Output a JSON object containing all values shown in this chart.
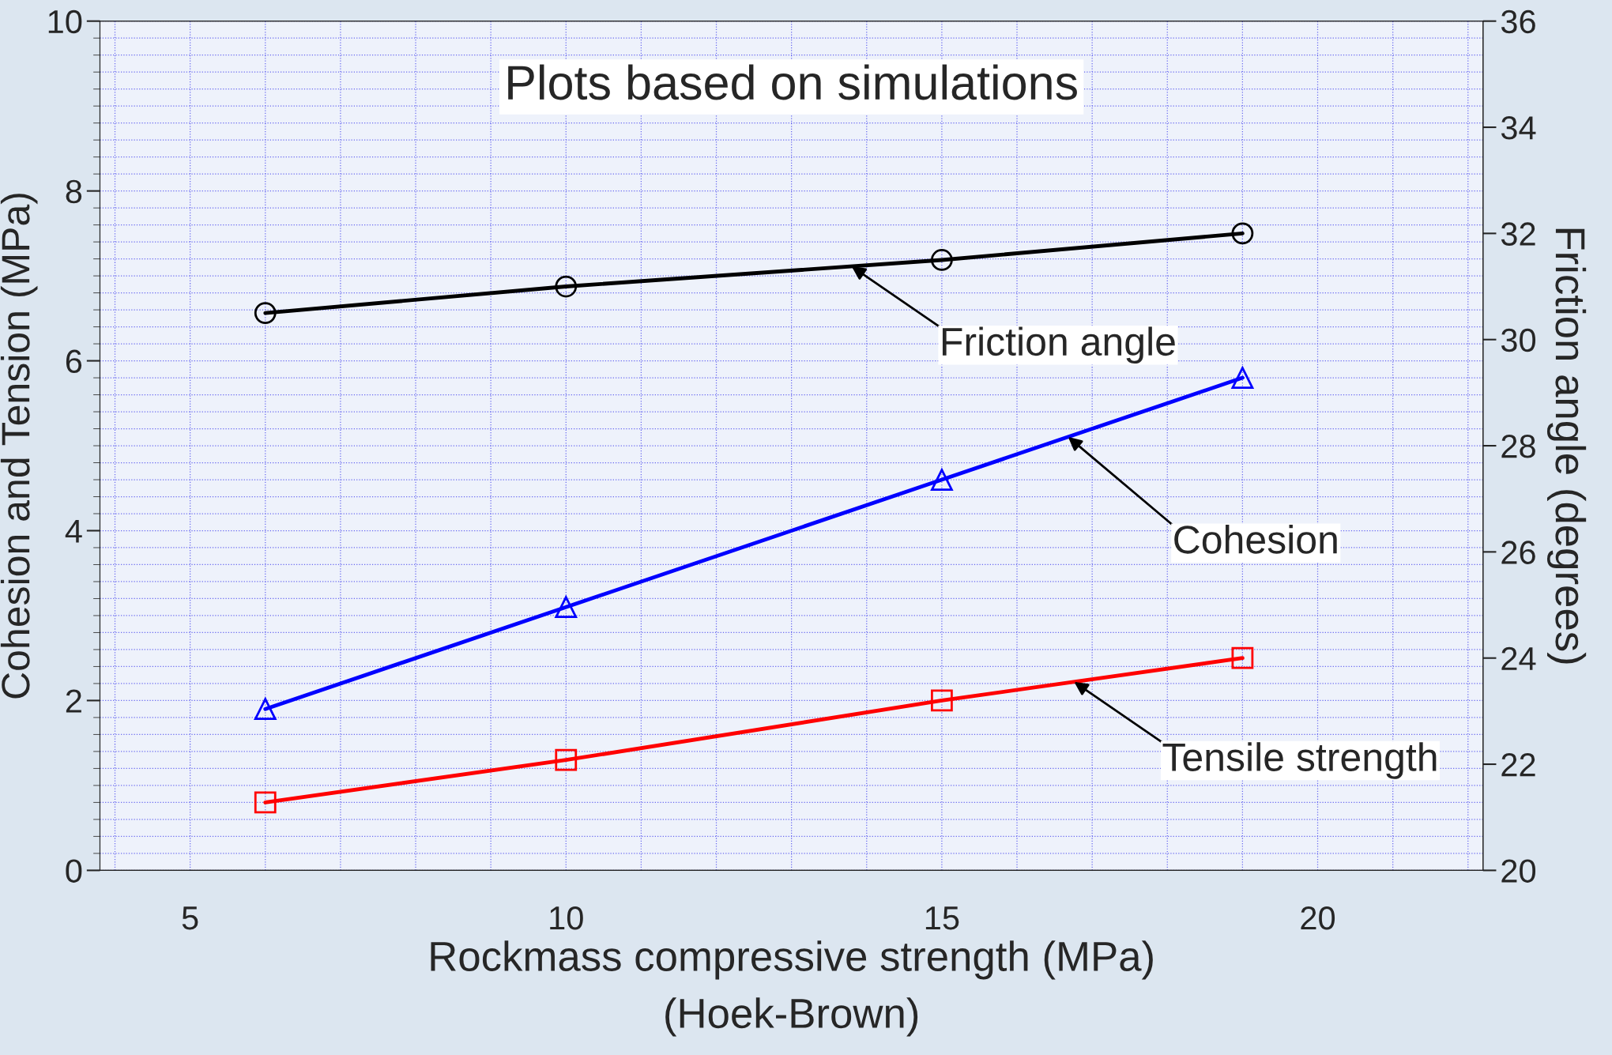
{
  "chart_data": {
    "type": "line",
    "title": "Plots based on simulations",
    "xlabel": "Rockmass compressive strength (MPa)\n(Hoek-Brown)",
    "ylabel": "Cohesion and Tension (MPa)",
    "y2label": "Friction angle (degrees)",
    "x": [
      6,
      10,
      15,
      19
    ],
    "series": [
      {
        "name": "Friction angle",
        "color": "#000000",
        "marker": "circle",
        "axis": "y2",
        "values": [
          30.5,
          31.0,
          31.5,
          32.0
        ]
      },
      {
        "name": "Cohesion",
        "color": "#0000ff",
        "marker": "triangle",
        "values": [
          1.9,
          3.1,
          4.6,
          5.8
        ]
      },
      {
        "name": "Tensile strength",
        "color": "#ff0000",
        "marker": "square",
        "values": [
          0.8,
          1.3,
          2.0,
          2.5
        ]
      }
    ],
    "xlim": [
      3.8,
      22.2
    ],
    "xticks": [
      5,
      10,
      15,
      20
    ],
    "ylim": [
      0,
      10
    ],
    "yticks": [
      0,
      2,
      4,
      6,
      8,
      10
    ],
    "y2lim": [
      20,
      36
    ],
    "y2ticks": [
      20,
      22,
      24,
      26,
      28,
      30,
      32,
      34,
      36
    ],
    "grid": true,
    "line_style": "solid"
  }
}
